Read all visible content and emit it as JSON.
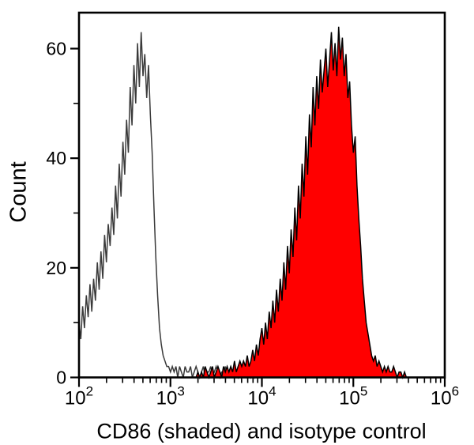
{
  "figure": {
    "background_color": "#ffffff",
    "frame_color": "#000000",
    "text_color": "#000000"
  },
  "chart_data": {
    "type": "histogram",
    "title": "",
    "xlabel": "CD86 (shaded) and isotype control",
    "ylabel": "Count",
    "x_scale": "log10",
    "x_log_range": [
      2,
      6
    ],
    "x_tick_base": "10",
    "x_tick_exponents": [
      "2",
      "3",
      "4",
      "5",
      "6"
    ],
    "x_minor_tick_pattern": "log decades 2-9",
    "ylim": [
      0,
      67
    ],
    "y_major_ticks": [
      0,
      20,
      40,
      60
    ],
    "y_minor_ticks": [
      10,
      30,
      50
    ],
    "grid": "off",
    "legend": "none",
    "bins": {
      "x_start_log10": 2.0,
      "x_step_log10": 0.02,
      "count": 201
    },
    "series": [
      {
        "name": "isotype control",
        "style": "open",
        "stroke": "#3a3a3a",
        "fill": "none",
        "stroke_width": 1.5,
        "peak_log10_x": 2.68,
        "peak_count": 63,
        "counts": [
          10,
          7,
          13,
          9,
          15,
          11,
          17,
          12,
          18,
          14,
          21,
          16,
          23,
          18,
          26,
          21,
          28,
          24,
          31,
          26,
          35,
          29,
          39,
          33,
          43,
          37,
          47,
          41,
          53,
          46,
          57,
          50,
          61,
          53,
          63,
          55,
          59,
          51,
          57,
          48,
          41,
          31,
          22,
          15,
          9,
          6,
          4,
          3,
          2,
          2,
          1,
          2,
          1,
          2,
          0,
          2,
          1,
          0,
          2,
          1,
          1,
          2,
          0,
          1,
          2,
          1,
          0,
          1,
          2,
          0,
          1,
          1,
          2,
          0,
          1,
          2,
          1,
          0,
          1,
          1,
          2,
          0,
          1,
          1,
          0,
          2,
          1,
          0,
          1,
          0,
          1,
          1,
          0,
          1,
          0,
          1,
          0,
          1,
          0,
          1,
          0,
          0,
          0,
          0,
          0,
          0,
          0,
          0,
          0,
          0,
          0,
          0,
          0,
          0,
          0,
          0,
          0,
          0,
          0,
          0,
          0,
          0,
          0,
          0,
          0,
          0,
          0,
          0,
          0,
          0,
          0,
          0,
          0,
          0,
          0,
          0,
          0,
          0,
          0,
          0,
          0,
          0,
          0,
          0,
          0,
          0,
          0,
          0,
          0,
          0,
          0,
          0,
          0,
          0,
          0,
          0,
          0,
          0,
          0,
          0,
          0,
          0,
          0,
          0,
          0,
          0,
          0,
          0,
          0,
          0,
          0,
          0,
          0,
          0,
          0,
          0,
          0,
          0,
          0,
          0,
          0,
          0,
          0,
          0,
          0,
          0,
          0,
          0,
          0,
          0,
          0,
          0,
          0,
          0,
          0,
          0,
          0,
          0,
          0,
          0,
          0
        ]
      },
      {
        "name": "CD86 (shaded)",
        "style": "filled",
        "stroke": "#000000",
        "fill": "#ff0000",
        "stroke_width": 1.5,
        "peak_log10_x": 4.84,
        "peak_count": 64,
        "counts": [
          0,
          0,
          0,
          0,
          0,
          0,
          0,
          0,
          0,
          0,
          0,
          0,
          0,
          0,
          0,
          0,
          0,
          0,
          0,
          0,
          0,
          0,
          0,
          0,
          0,
          0,
          0,
          0,
          0,
          0,
          0,
          0,
          0,
          0,
          0,
          0,
          0,
          0,
          0,
          0,
          0,
          0,
          0,
          0,
          0,
          0,
          0,
          0,
          0,
          0,
          0,
          0,
          0,
          0,
          0,
          0,
          0,
          0,
          0,
          0,
          0,
          0,
          0,
          0,
          0,
          1,
          0,
          1,
          0,
          2,
          1,
          0,
          1,
          2,
          0,
          1,
          2,
          1,
          0,
          2,
          1,
          2,
          1,
          2,
          1,
          3,
          1,
          2,
          3,
          2,
          3,
          2,
          4,
          2,
          3,
          5,
          3,
          6,
          4,
          7,
          9,
          6,
          10,
          7,
          12,
          9,
          14,
          10,
          16,
          12,
          18,
          14,
          21,
          16,
          24,
          19,
          27,
          22,
          31,
          25,
          35,
          29,
          39,
          33,
          44,
          37,
          48,
          42,
          53,
          46,
          55,
          49,
          58,
          52,
          56,
          60,
          53,
          58,
          63,
          56,
          61,
          55,
          64,
          58,
          62,
          55,
          59,
          51,
          54,
          46,
          41,
          44,
          35,
          29,
          24,
          18,
          14,
          10,
          8,
          6,
          4,
          3,
          4,
          2,
          3,
          2,
          1,
          2,
          1,
          2,
          1,
          1,
          2,
          1,
          0,
          1,
          1,
          0,
          1,
          0,
          0,
          0,
          0,
          0,
          0,
          0,
          0,
          0,
          0,
          0,
          0,
          0,
          0,
          0,
          0,
          0,
          0,
          0,
          0,
          0,
          0
        ]
      }
    ]
  }
}
